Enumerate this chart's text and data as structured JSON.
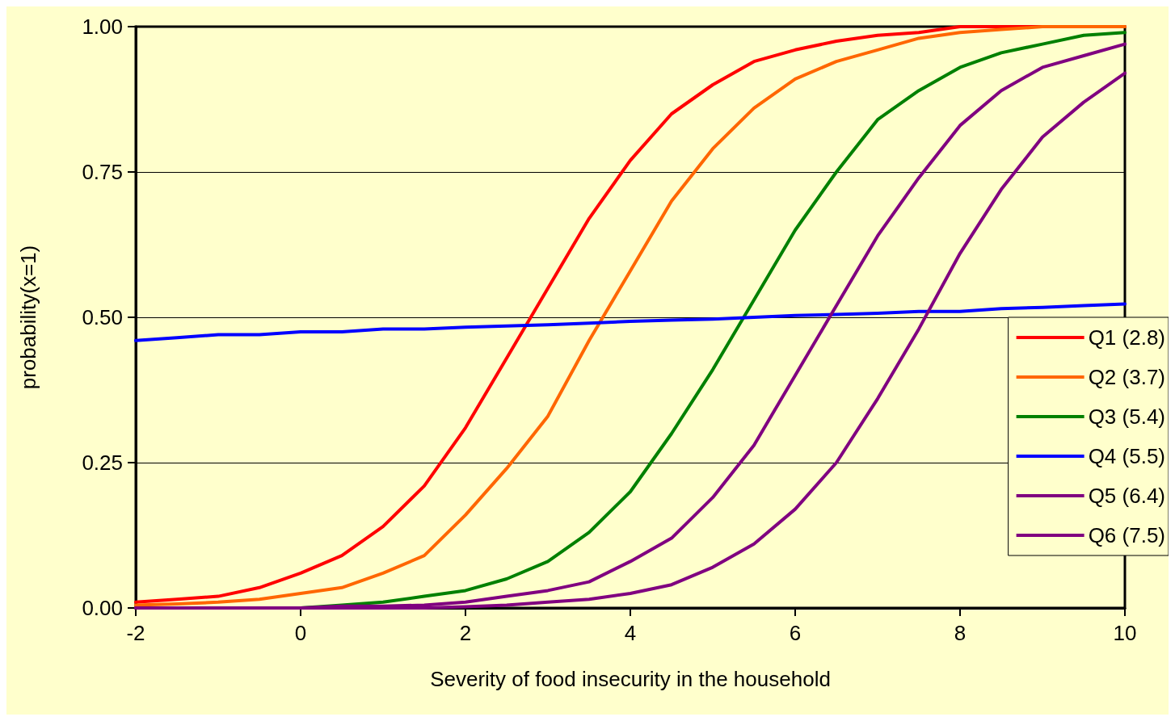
{
  "chart_data": {
    "type": "line",
    "xlabel": "Severity of food insecurity in the household",
    "ylabel": "probability(x=1)",
    "x": [
      -2,
      -1.5,
      -1,
      -0.5,
      0,
      0.5,
      1,
      1.5,
      2,
      2.5,
      3,
      3.5,
      4,
      4.5,
      5,
      5.5,
      6,
      6.5,
      7,
      7.5,
      8,
      8.5,
      9,
      9.5,
      10
    ],
    "series": [
      {
        "name": "Q1 (2.8)",
        "color": "#ff0000",
        "values": [
          0.01,
          0.015,
          0.02,
          0.035,
          0.06,
          0.09,
          0.14,
          0.21,
          0.31,
          0.43,
          0.55,
          0.67,
          0.77,
          0.85,
          0.9,
          0.94,
          0.96,
          0.975,
          0.985,
          0.99,
          1,
          1,
          1,
          1,
          1
        ]
      },
      {
        "name": "Q2 (3.7)",
        "color": "#ff6600",
        "values": [
          0.005,
          0.007,
          0.01,
          0.015,
          0.025,
          0.035,
          0.06,
          0.09,
          0.16,
          0.24,
          0.33,
          0.46,
          0.58,
          0.7,
          0.79,
          0.86,
          0.91,
          0.94,
          0.96,
          0.98,
          0.99,
          0.995,
          1,
          1,
          1
        ]
      },
      {
        "name": "Q3 (5.4)",
        "color": "#008000",
        "values": [
          null,
          null,
          null,
          0,
          0,
          0.005,
          0.01,
          0.02,
          0.03,
          0.05,
          0.08,
          0.13,
          0.2,
          0.3,
          0.41,
          0.53,
          0.65,
          0.75,
          0.84,
          0.89,
          0.93,
          0.955,
          0.97,
          0.985,
          0.99
        ]
      },
      {
        "name": "Q4 (5.5)",
        "color": "#0000ff",
        "values": [
          0.46,
          0.465,
          0.47,
          0.47,
          0.475,
          0.475,
          0.48,
          0.48,
          0.483,
          0.485,
          0.487,
          0.49,
          0.493,
          0.495,
          0.497,
          0.5,
          0.503,
          0.505,
          0.507,
          0.51,
          0.51,
          0.515,
          0.517,
          0.52,
          0.523
        ]
      },
      {
        "name": "Q5 (6.4)",
        "color": "#800080",
        "values": [
          0,
          0,
          0,
          0,
          0,
          0.003,
          0.003,
          0.005,
          0.01,
          0.02,
          0.03,
          0.045,
          0.08,
          0.12,
          0.19,
          0.28,
          0.4,
          0.52,
          0.64,
          0.74,
          0.83,
          0.89,
          0.93,
          0.95,
          0.97
        ]
      },
      {
        "name": "Q6 (7.5)",
        "color": "#800080",
        "values": [
          0,
          0,
          0,
          0,
          0,
          0,
          0,
          0,
          0.002,
          0.005,
          0.01,
          0.015,
          0.025,
          0.04,
          0.07,
          0.11,
          0.17,
          0.25,
          0.36,
          0.48,
          0.61,
          0.72,
          0.81,
          0.87,
          0.92
        ]
      }
    ],
    "xlim": [
      -2,
      10
    ],
    "xticks": [
      -2,
      0,
      2,
      4,
      6,
      8,
      10
    ],
    "ylim": [
      0,
      1
    ],
    "yticks": [
      {
        "value": 0,
        "label": "0.00"
      },
      {
        "value": 0.25,
        "label": "0.25"
      },
      {
        "value": 0.5,
        "label": "0.50"
      },
      {
        "value": 0.75,
        "label": "0.75"
      },
      {
        "value": 1,
        "label": "1.00"
      }
    ],
    "grid": "y",
    "legend": "right",
    "marker": "none",
    "line_style": "solid"
  }
}
